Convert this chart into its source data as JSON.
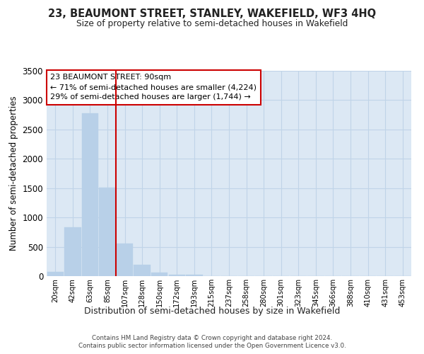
{
  "title": "23, BEAUMONT STREET, STANLEY, WAKEFIELD, WF3 4HQ",
  "subtitle": "Size of property relative to semi-detached houses in Wakefield",
  "xlabel": "Distribution of semi-detached houses by size in Wakefield",
  "ylabel": "Number of semi-detached properties",
  "categories": [
    "20sqm",
    "42sqm",
    "63sqm",
    "85sqm",
    "107sqm",
    "128sqm",
    "150sqm",
    "172sqm",
    "193sqm",
    "215sqm",
    "237sqm",
    "258sqm",
    "280sqm",
    "301sqm",
    "323sqm",
    "345sqm",
    "366sqm",
    "388sqm",
    "410sqm",
    "431sqm",
    "453sqm"
  ],
  "values": [
    70,
    830,
    2780,
    1510,
    560,
    190,
    65,
    30,
    25,
    5,
    5,
    0,
    0,
    0,
    0,
    0,
    0,
    0,
    0,
    0,
    0
  ],
  "bar_color": "#b8d0e8",
  "vline_color": "#cc0000",
  "vline_x": 3.5,
  "grid_color": "#c0d4e8",
  "background_color": "#dce8f4",
  "ylim": [
    0,
    3500
  ],
  "yticks": [
    0,
    500,
    1000,
    1500,
    2000,
    2500,
    3000,
    3500
  ],
  "annotation_text": "23 BEAUMONT STREET: 90sqm\n← 71% of semi-detached houses are smaller (4,224)\n29% of semi-detached houses are larger (1,744) →",
  "annotation_box_facecolor": "#ffffff",
  "annotation_box_edgecolor": "#cc0000",
  "footer1": "Contains HM Land Registry data © Crown copyright and database right 2024.",
  "footer2": "Contains public sector information licensed under the Open Government Licence v3.0."
}
